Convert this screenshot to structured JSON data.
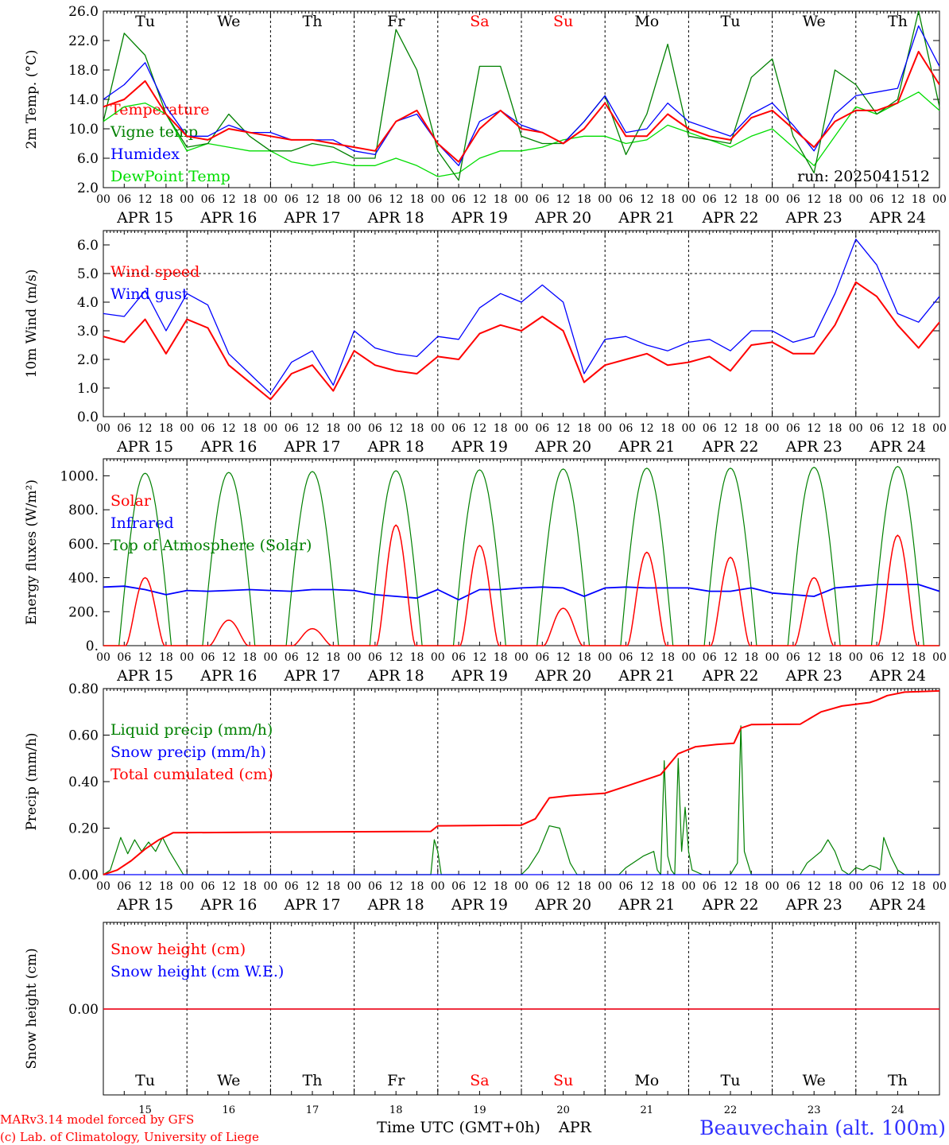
{
  "run_label": "run: 2025041512",
  "days_short": [
    "Tu",
    "We",
    "Th",
    "Fr",
    "Sa",
    "Su",
    "Mo",
    "Tu",
    "We",
    "Th"
  ],
  "days_color": [
    "#000000",
    "#000000",
    "#000000",
    "#000000",
    "#ff0000",
    "#ff0000",
    "#000000",
    "#000000",
    "#000000",
    "#000000"
  ],
  "date_labels": [
    "APR 15",
    "APR 16",
    "APR 17",
    "APR 18",
    "APR 19",
    "APR 20",
    "APR 21",
    "APR 22",
    "APR 23",
    "APR 24"
  ],
  "hour_labels": [
    "00",
    "06",
    "12",
    "18"
  ],
  "hour_end_label": "00",
  "day_numbers": [
    "15",
    "16",
    "17",
    "18",
    "19",
    "20",
    "21",
    "22",
    "23",
    "24"
  ],
  "footer": {
    "credit_line1": "MARv3.14 model forced by GFS",
    "credit_line2": "(c) Lab. of Climatology, University of Liege",
    "time_axis": "Time UTC (GMT+0h)",
    "month": "APR",
    "station": "Beauvechain (alt. 100m)"
  },
  "colors": {
    "red": "#ff0000",
    "green": "#008000",
    "blue": "#0000ff",
    "lime": "#00dd00",
    "station": "#3333ff"
  },
  "chart_data": [
    {
      "type": "line",
      "ylabel": "2m Temp. (°C)",
      "ylim": [
        2.0,
        26.0
      ],
      "yticks": [
        "2.0",
        "6.0",
        "10.0",
        "14.0",
        "18.0",
        "22.0",
        "26.0"
      ],
      "ytick_values": [
        2,
        6,
        10,
        14,
        18,
        22,
        26
      ],
      "x_hours": [
        0,
        6,
        12,
        18,
        24,
        30,
        36,
        42,
        48,
        54,
        60,
        66,
        72,
        78,
        84,
        90,
        96,
        102,
        108,
        114,
        120,
        126,
        132,
        138,
        144,
        150,
        156,
        162,
        168,
        174,
        180,
        186,
        192,
        198,
        204,
        210,
        216,
        222,
        228,
        234,
        240
      ],
      "series": [
        {
          "name": "Temperature",
          "color": "red",
          "values": [
            13,
            14,
            16.5,
            12,
            9,
            8.5,
            10,
            9.5,
            9,
            8.5,
            8.5,
            8,
            7.5,
            7,
            11,
            12.5,
            8,
            5.5,
            10,
            12.5,
            10,
            9.5,
            8,
            10,
            13.5,
            9,
            9,
            12,
            10,
            9,
            8.5,
            11.5,
            12.5,
            10,
            7.5,
            11,
            12.5,
            12.5,
            13.5,
            20.5,
            16
          ]
        },
        {
          "name": "Vigne temp",
          "color": "green",
          "values": [
            11,
            23,
            20,
            12,
            7.5,
            8,
            12,
            9,
            7,
            7,
            8,
            7.5,
            6,
            6,
            23.5,
            18,
            7,
            3,
            18.5,
            18.5,
            9,
            8,
            8,
            11,
            14.5,
            6.5,
            12,
            21.5,
            9,
            8.5,
            8,
            17,
            19.5,
            9,
            4,
            18,
            16,
            12,
            14,
            26,
            13
          ]
        },
        {
          "name": "Humidex",
          "color": "blue",
          "values": [
            14,
            16,
            19,
            13,
            9,
            9,
            10.5,
            9.5,
            9.5,
            8.5,
            8.5,
            8.5,
            7,
            6.5,
            11,
            12,
            8,
            5,
            11,
            12.5,
            10.5,
            9.5,
            8,
            11,
            14.5,
            9.5,
            10,
            13.5,
            11,
            10,
            9,
            12,
            13.5,
            10.5,
            7,
            12,
            14.5,
            15,
            15.5,
            24,
            18.5
          ]
        },
        {
          "name": "DewPoint Temp",
          "color": "lime",
          "values": [
            11,
            13,
            13.5,
            12,
            7,
            8,
            7.5,
            7,
            7,
            5.5,
            5,
            5.5,
            5,
            5,
            6,
            5,
            3.5,
            4,
            6,
            7,
            7,
            7.5,
            8.5,
            9,
            9,
            8,
            8.5,
            10.5,
            9.5,
            8.5,
            7.5,
            9,
            10,
            7.5,
            5,
            9,
            13,
            12,
            13.5,
            15,
            12.5
          ]
        }
      ]
    },
    {
      "type": "line",
      "ylabel": "10m Wind (m/s)",
      "ylim": [
        0.0,
        6.5
      ],
      "yticks": [
        "0.0",
        "1.0",
        "2.0",
        "3.0",
        "4.0",
        "5.0",
        "6.0"
      ],
      "ytick_values": [
        0,
        1,
        2,
        3,
        4,
        5,
        6
      ],
      "reference_line": 5.0,
      "x_hours": [
        0,
        6,
        12,
        18,
        24,
        30,
        36,
        42,
        48,
        54,
        60,
        66,
        72,
        78,
        84,
        90,
        96,
        102,
        108,
        114,
        120,
        126,
        132,
        138,
        144,
        150,
        156,
        162,
        168,
        174,
        180,
        186,
        192,
        198,
        204,
        210,
        216,
        222,
        228,
        234,
        240
      ],
      "series": [
        {
          "name": "Wind speed",
          "color": "red",
          "values": [
            2.8,
            2.6,
            3.4,
            2.2,
            3.4,
            3.1,
            1.8,
            1.2,
            0.6,
            1.5,
            1.8,
            0.9,
            2.3,
            1.8,
            1.6,
            1.5,
            2.1,
            2.0,
            2.9,
            3.2,
            3.0,
            3.5,
            3.0,
            1.2,
            1.8,
            2.0,
            2.2,
            1.8,
            1.9,
            2.1,
            1.6,
            2.5,
            2.6,
            2.2,
            2.2,
            3.2,
            4.7,
            4.2,
            3.2,
            2.4,
            3.3
          ]
        },
        {
          "name": "Wind gust",
          "color": "blue",
          "values": [
            3.6,
            3.5,
            4.4,
            3.0,
            4.3,
            3.9,
            2.2,
            1.5,
            0.8,
            1.9,
            2.3,
            1.1,
            3.0,
            2.4,
            2.2,
            2.1,
            2.8,
            2.7,
            3.8,
            4.3,
            4.0,
            4.6,
            4.0,
            1.5,
            2.7,
            2.8,
            2.5,
            2.3,
            2.6,
            2.7,
            2.3,
            3.0,
            3.0,
            2.6,
            2.8,
            4.3,
            6.2,
            5.3,
            3.6,
            3.3,
            4.2
          ]
        }
      ]
    },
    {
      "type": "line",
      "ylabel": "Energy fluxes (W/m²)",
      "ylim": [
        0,
        1100
      ],
      "yticks": [
        "0.",
        "200.",
        "400.",
        "600.",
        "800.",
        "1000."
      ],
      "ytick_values": [
        0,
        200,
        400,
        600,
        800,
        1000
      ],
      "daily_peaks": {
        "Top of Atmosphere (Solar)": [
          1015,
          1020,
          1025,
          1030,
          1035,
          1040,
          1045,
          1045,
          1050,
          1055
        ],
        "Solar": [
          400,
          150,
          100,
          710,
          590,
          220,
          550,
          520,
          400,
          650
        ]
      },
      "series": [
        {
          "name": "Solar",
          "color": "red"
        },
        {
          "name": "Infrared",
          "color": "blue",
          "values": [
            345,
            350,
            330,
            300,
            325,
            320,
            325,
            330,
            325,
            320,
            330,
            330,
            325,
            300,
            290,
            280,
            330,
            270,
            330,
            330,
            340,
            345,
            340,
            290,
            340,
            345,
            340,
            340,
            340,
            320,
            320,
            340,
            310,
            300,
            290,
            340,
            350,
            360,
            360,
            360,
            320
          ]
        },
        {
          "name": "Top of Atmosphere (Solar)",
          "color": "green"
        }
      ]
    },
    {
      "type": "line",
      "ylabel": "Precip (mm/h)",
      "ylim": [
        0.0,
        0.8
      ],
      "yticks": [
        "0.00",
        "0.20",
        "0.40",
        "0.60",
        "0.80"
      ],
      "ytick_values": [
        0,
        0.2,
        0.4,
        0.6,
        0.8
      ],
      "series": [
        {
          "name": "Liquid precip (mm/h)",
          "color": "green",
          "points": [
            [
              0,
              0
            ],
            [
              2,
              0.02
            ],
            [
              5,
              0.16
            ],
            [
              7,
              0.09
            ],
            [
              9,
              0.15
            ],
            [
              11,
              0.1
            ],
            [
              13,
              0.14
            ],
            [
              15,
              0.1
            ],
            [
              17,
              0.16
            ],
            [
              19,
              0.1
            ],
            [
              21,
              0.05
            ],
            [
              23,
              0
            ],
            [
              48,
              0
            ],
            [
              66,
              0
            ],
            [
              94,
              0
            ],
            [
              95,
              0.15
            ],
            [
              96,
              0.1
            ],
            [
              97,
              0
            ],
            [
              120,
              0
            ],
            [
              122,
              0.03
            ],
            [
              125,
              0.1
            ],
            [
              128,
              0.21
            ],
            [
              131,
              0.2
            ],
            [
              134,
              0.05
            ],
            [
              136,
              0
            ],
            [
              148,
              0
            ],
            [
              150,
              0.03
            ],
            [
              155,
              0.08
            ],
            [
              158,
              0.1
            ],
            [
              159,
              0.02
            ],
            [
              160,
              0
            ],
            [
              161,
              0.49
            ],
            [
              162,
              0.08
            ],
            [
              163,
              0.02
            ],
            [
              164,
              0
            ],
            [
              165,
              0.5
            ],
            [
              166,
              0.1
            ],
            [
              167,
              0.29
            ],
            [
              168,
              0.1
            ],
            [
              169,
              0.02
            ],
            [
              172,
              0
            ],
            [
              180,
              0
            ],
            [
              182,
              0.05
            ],
            [
              183,
              0.64
            ],
            [
              184,
              0.1
            ],
            [
              185,
              0.05
            ],
            [
              186,
              0
            ],
            [
              200,
              0
            ],
            [
              202,
              0.05
            ],
            [
              206,
              0.1
            ],
            [
              208,
              0.15
            ],
            [
              210,
              0.1
            ],
            [
              212,
              0.02
            ],
            [
              214,
              0
            ],
            [
              216,
              0.03
            ],
            [
              218,
              0.02
            ],
            [
              220,
              0.04
            ],
            [
              222,
              0.03
            ],
            [
              223,
              0.02
            ],
            [
              224,
              0.16
            ],
            [
              226,
              0.08
            ],
            [
              228,
              0.02
            ],
            [
              230,
              0
            ],
            [
              240,
              0
            ]
          ]
        },
        {
          "name": "Snow precip (mm/h)",
          "color": "blue",
          "points": [
            [
              0,
              0
            ],
            [
              240,
              0
            ]
          ]
        },
        {
          "name": "Total cumulated (cm)",
          "color": "red",
          "points": [
            [
              0,
              0
            ],
            [
              4,
              0.02
            ],
            [
              8,
              0.06
            ],
            [
              12,
              0.11
            ],
            [
              16,
              0.15
            ],
            [
              20,
              0.18
            ],
            [
              48,
              0.183
            ],
            [
              94,
              0.186
            ],
            [
              96,
              0.21
            ],
            [
              120,
              0.213
            ],
            [
              124,
              0.24
            ],
            [
              128,
              0.33
            ],
            [
              134,
              0.34
            ],
            [
              144,
              0.35
            ],
            [
              150,
              0.38
            ],
            [
              160,
              0.43
            ],
            [
              165,
              0.52
            ],
            [
              170,
              0.55
            ],
            [
              176,
              0.56
            ],
            [
              181,
              0.565
            ],
            [
              183,
              0.63
            ],
            [
              186,
              0.645
            ],
            [
              200,
              0.647
            ],
            [
              206,
              0.7
            ],
            [
              212,
              0.725
            ],
            [
              220,
              0.74
            ],
            [
              222,
              0.75
            ],
            [
              225,
              0.77
            ],
            [
              230,
              0.785
            ],
            [
              240,
              0.79
            ]
          ]
        }
      ]
    },
    {
      "type": "line",
      "ylabel": "Snow height (cm)",
      "yticks": [
        "0.00"
      ],
      "series": [
        {
          "name": "Snow height (cm)",
          "color": "red",
          "values": [
            0
          ]
        },
        {
          "name": "Snow height (cm W.E.)",
          "color": "blue",
          "values": [
            0
          ]
        }
      ]
    }
  ]
}
